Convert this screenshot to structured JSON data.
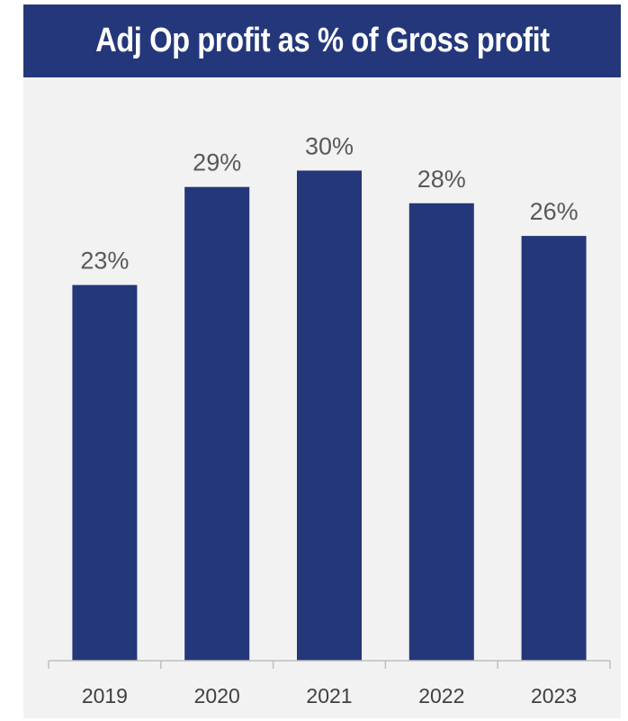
{
  "chart_data": {
    "type": "bar",
    "title": "Adj Op profit as % of Gross profit",
    "categories": [
      "2019",
      "2020",
      "2021",
      "2022",
      "2023"
    ],
    "values": [
      23,
      29,
      30,
      28,
      26
    ],
    "data_labels": [
      "23%",
      "29%",
      "30%",
      "28%",
      "26%"
    ],
    "xlabel": "",
    "ylabel": "",
    "ylim": [
      0,
      30
    ],
    "grid": false,
    "legend": "none",
    "colors": {
      "bar": "#24377a",
      "header_background": "#24377a",
      "panel_background": "#f2f2f2",
      "axis": "#bfbfbf",
      "value_text": "#595959",
      "tick_text": "#404040"
    }
  }
}
